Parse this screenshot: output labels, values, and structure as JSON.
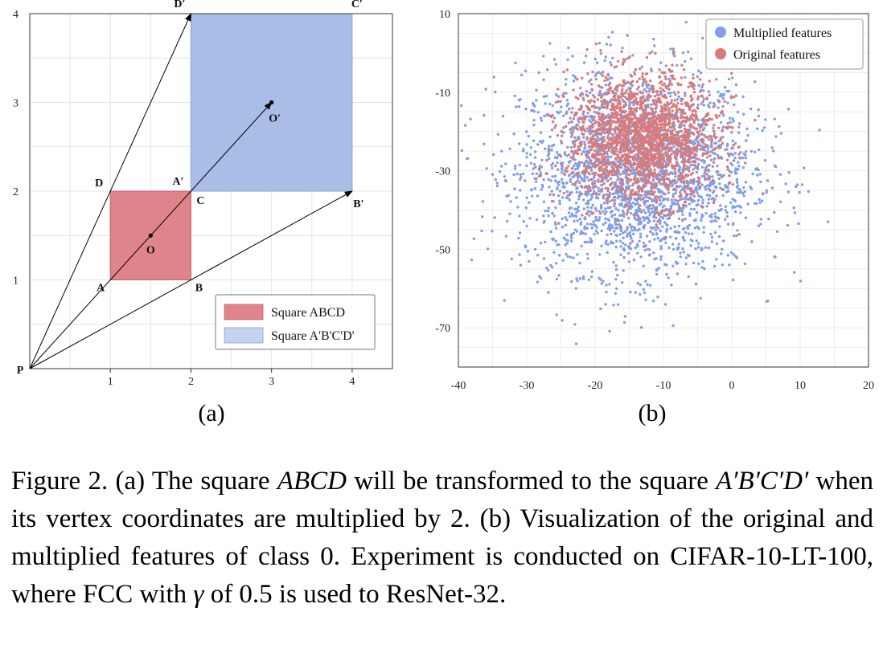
{
  "chart_data": [
    {
      "type": "diagram",
      "panel_label": "(a)",
      "xlim": [
        0,
        4.5
      ],
      "ylim": [
        0,
        4.0
      ],
      "x_ticks": [
        "1",
        "2",
        "3",
        "4"
      ],
      "y_ticks": [
        "1",
        "2",
        "3",
        "4"
      ],
      "origin_label": "P",
      "points": [
        {
          "name": "A",
          "label": "A",
          "x": 1,
          "y": 1
        },
        {
          "name": "B",
          "label": "B",
          "x": 2,
          "y": 1
        },
        {
          "name": "C",
          "label": "C",
          "x": 2,
          "y": 2
        },
        {
          "name": "D",
          "label": "D",
          "x": 1,
          "y": 2
        },
        {
          "name": "O",
          "label": "O",
          "x": 1.5,
          "y": 1.5
        },
        {
          "name": "A2",
          "label": "A′",
          "x": 2,
          "y": 2
        },
        {
          "name": "B2",
          "label": "B′",
          "x": 4,
          "y": 2
        },
        {
          "name": "C2",
          "label": "C′",
          "x": 4,
          "y": 4
        },
        {
          "name": "D2",
          "label": "D′",
          "x": 2,
          "y": 4
        },
        {
          "name": "O2",
          "label": "O′",
          "x": 3,
          "y": 3
        }
      ],
      "squares": [
        {
          "name": "Square ABCD",
          "x0": 1,
          "y0": 1,
          "x1": 2,
          "y1": 2,
          "color": "#e0848c"
        },
        {
          "name": "Square A'B'C'D'",
          "x0": 2,
          "y0": 2,
          "x1": 4,
          "y1": 4,
          "color": "#a9bde6"
        }
      ],
      "arrows_to": [
        [
          2,
          4
        ],
        [
          3,
          3
        ],
        [
          4,
          2
        ]
      ],
      "legend": [
        "Square ABCD",
        "Square A'B'C'D'"
      ]
    },
    {
      "type": "scatter",
      "panel_label": "(b)",
      "xlim": [
        -40,
        20
      ],
      "ylim": [
        -80,
        10
      ],
      "x_ticks": [
        "-40",
        "-30",
        "-20",
        "-10",
        "0",
        "10",
        "20"
      ],
      "y_ticks": [
        "10",
        "-10",
        "-30",
        "-50",
        "-70"
      ],
      "series": [
        {
          "name": "Multiplied features",
          "color": "#7f9fe6",
          "center": [
            -14,
            -30
          ],
          "spread": [
            8.5,
            13
          ],
          "count": 2600
        },
        {
          "name": "Original features",
          "color": "#d97a7a",
          "center": [
            -13,
            -22
          ],
          "spread": [
            5.5,
            8
          ],
          "count": 1900
        }
      ]
    }
  ],
  "caption": {
    "text_1": "Figure 2. (a) The square ",
    "math_1": "ABCD",
    "text_2": " will be transformed to the square ",
    "math_2": "A′B′C′D′",
    "text_3": " when its vertex coordinates are multiplied by 2. (b) Visualization of the original and multiplied features of class 0. Experiment is conducted on CIFAR-10-LT-100, where FCC with ",
    "math_3": "γ",
    "text_4": " of 0.5 is used to ResNet-32."
  }
}
